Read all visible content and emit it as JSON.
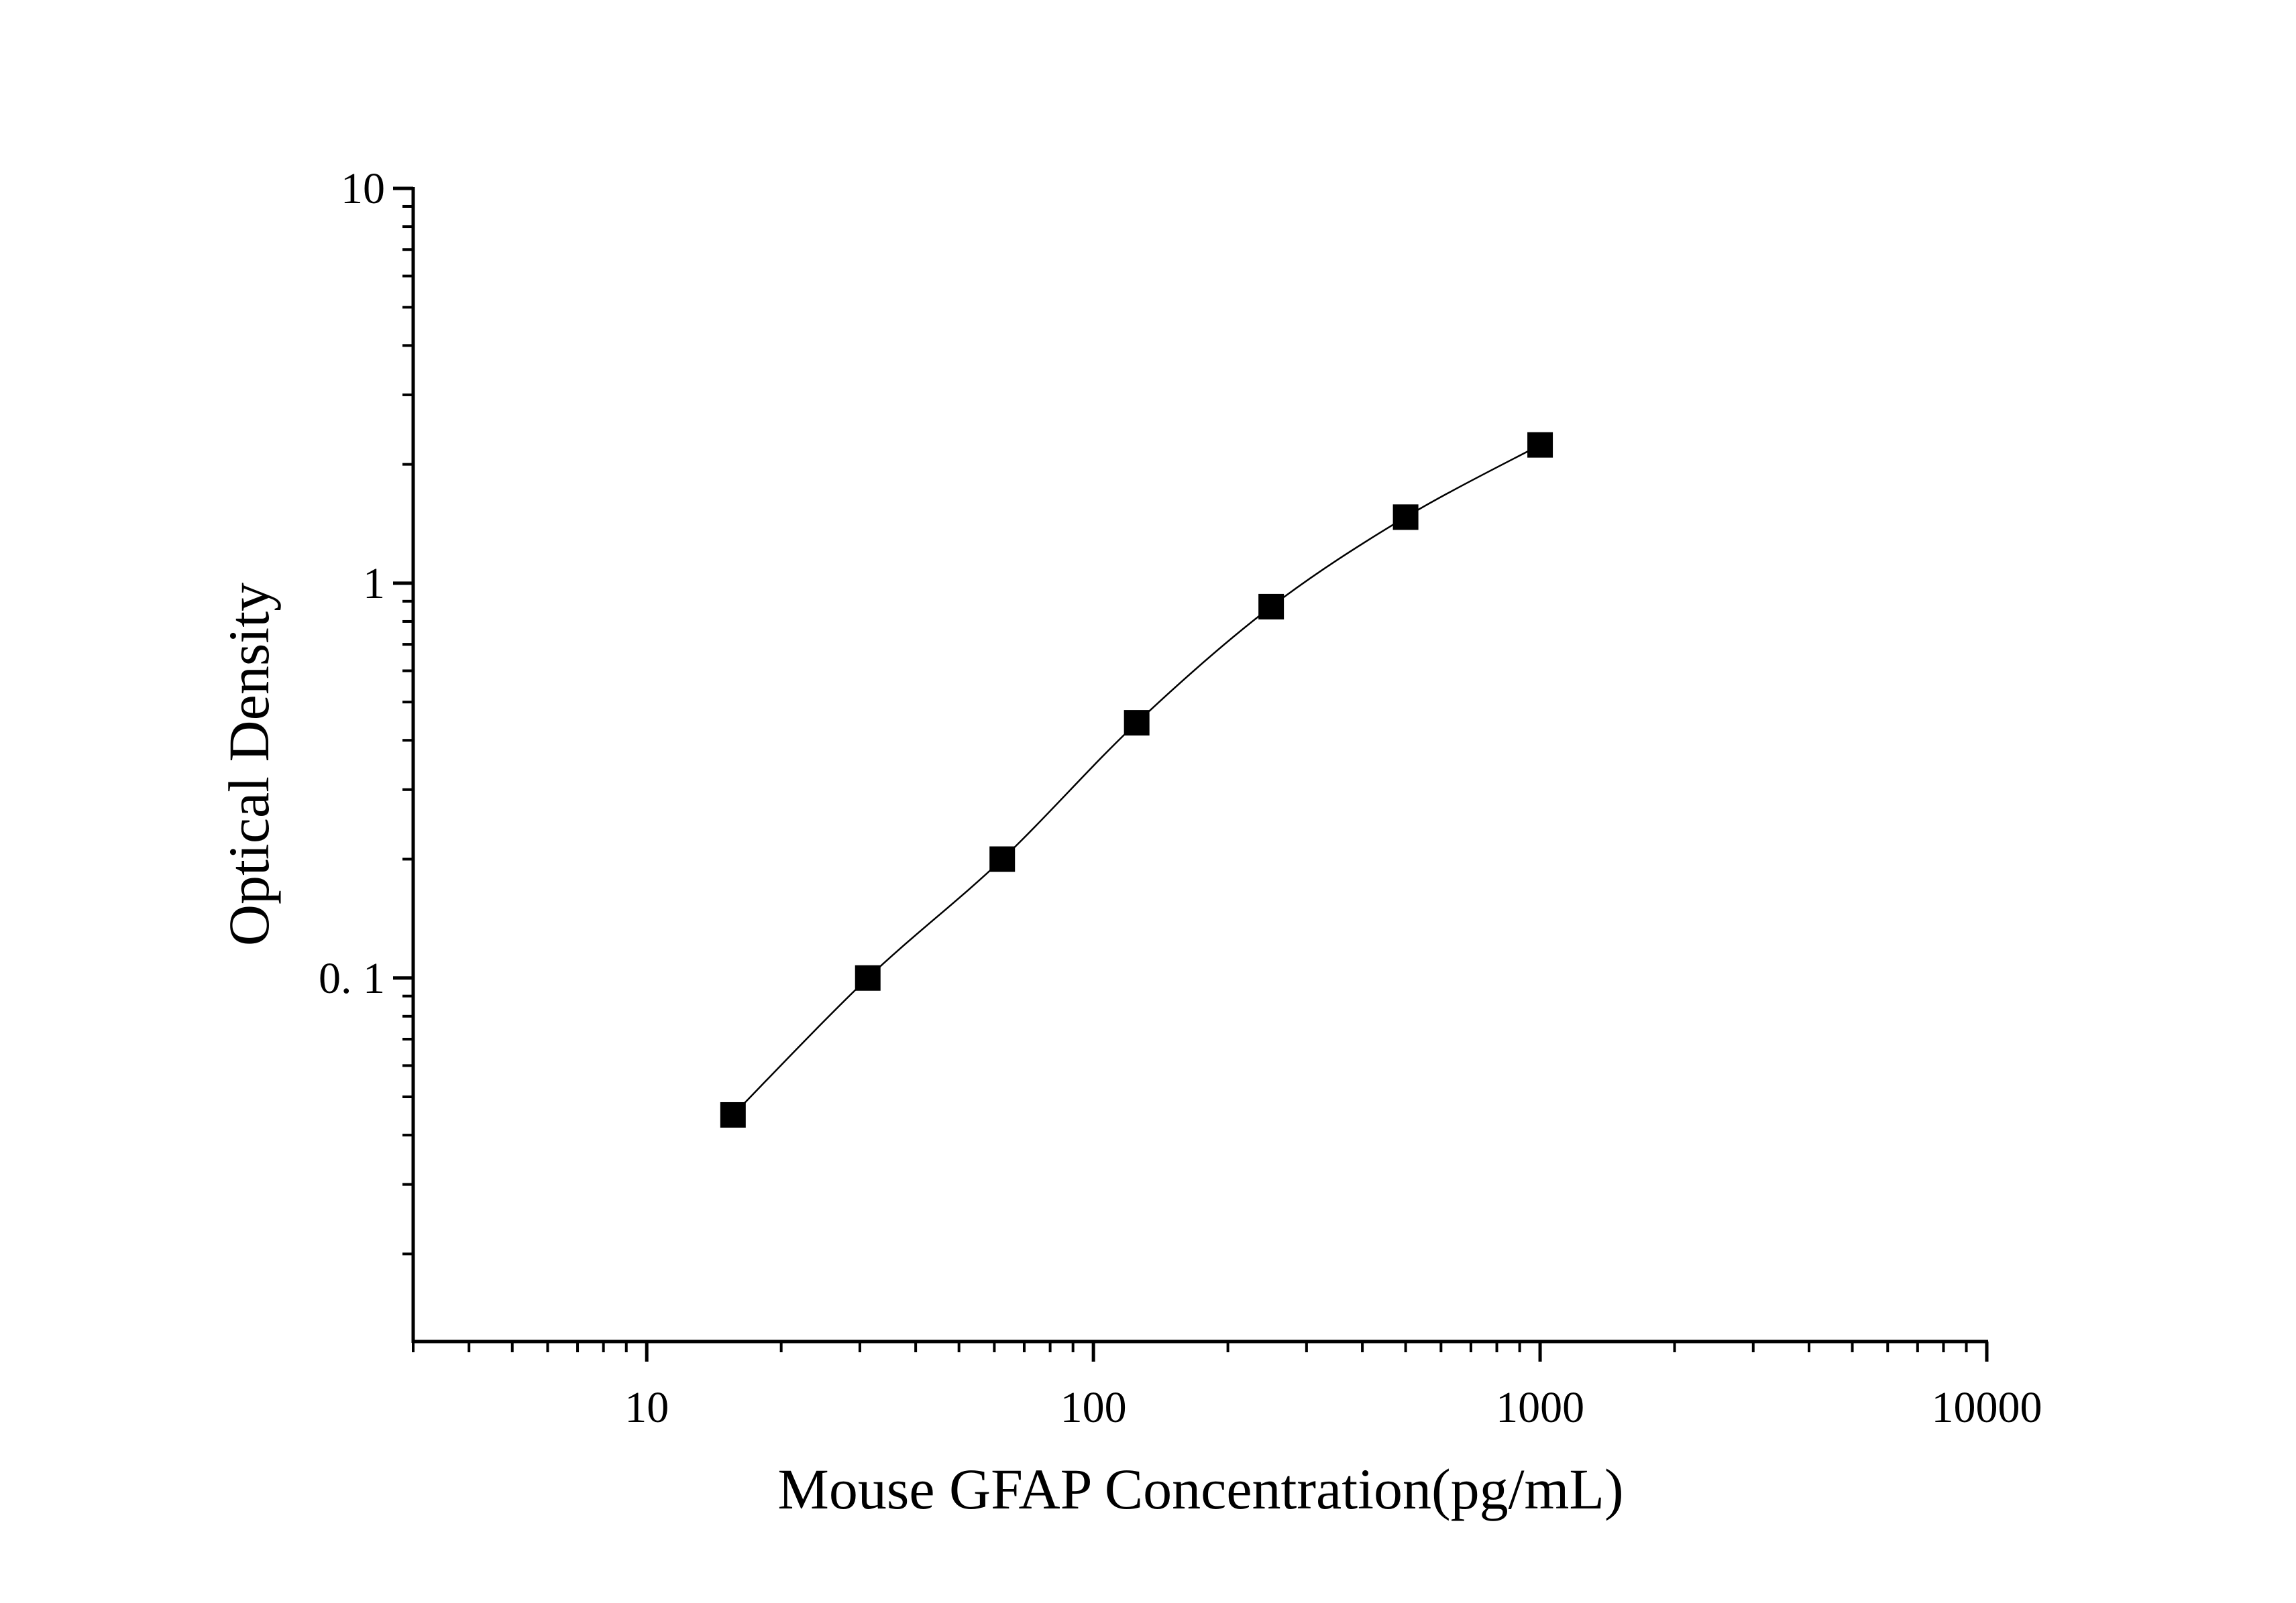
{
  "chart_data": {
    "type": "scatter",
    "x_label": "Mouse GFAP Concentration(pg/mL)",
    "y_label": "Optical Density",
    "x": [
      15.6,
      31.25,
      62.5,
      125,
      250,
      500,
      1000
    ],
    "series": [
      {
        "color": "#000000",
        "values": [
          0.045,
          0.1,
          0.2,
          0.443,
          0.872,
          1.47,
          2.24
        ]
      }
    ],
    "fit_line": true,
    "xlog": true,
    "ylog": true,
    "xlim": [
      3,
      10000
    ],
    "ylim": [
      0.012,
      10
    ],
    "xticks": [
      10,
      100,
      1000,
      10000
    ],
    "yticks": [
      {
        "value": 0.1,
        "label": "0. 1"
      },
      1,
      10
    ]
  }
}
